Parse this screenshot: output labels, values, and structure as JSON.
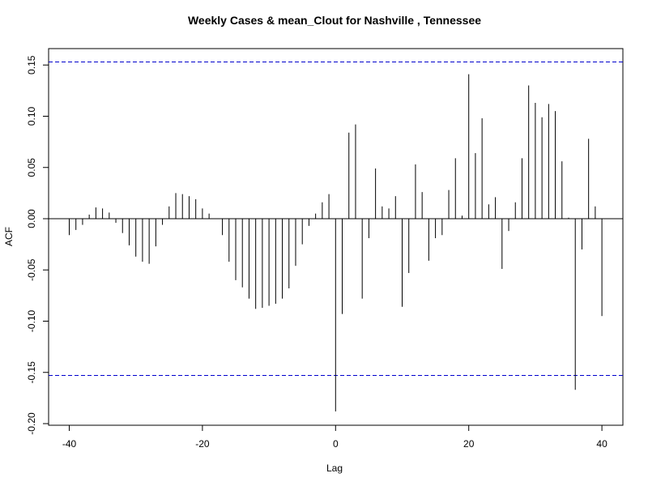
{
  "chart_data": {
    "type": "bar",
    "title": "Weekly Cases & mean_Clout for Nashville , Tennessee",
    "xlabel": "Lag",
    "ylabel": "ACF",
    "xlim": [
      -42,
      43
    ],
    "ylim": [
      -0.2,
      0.16
    ],
    "x_ticks": [
      -40,
      -20,
      0,
      20,
      40
    ],
    "x_tick_labels": [
      "-40",
      "-20",
      "0",
      "20",
      "40"
    ],
    "y_ticks": [
      -0.2,
      -0.15,
      -0.1,
      -0.05,
      0.0,
      0.05,
      0.1,
      0.15
    ],
    "y_tick_labels": [
      "-0.20",
      "-0.15",
      "-0.10",
      "-0.05",
      "0.00",
      "0.05",
      "0.10",
      "0.15"
    ],
    "confidence_bound": 0.153,
    "confidence_color": "#0000CD",
    "bar_color": "#000000",
    "lags": [
      -40,
      -39,
      -38,
      -37,
      -36,
      -35,
      -34,
      -33,
      -32,
      -31,
      -30,
      -29,
      -28,
      -27,
      -26,
      -25,
      -24,
      -23,
      -22,
      -21,
      -20,
      -19,
      -18,
      -17,
      -16,
      -15,
      -14,
      -13,
      -12,
      -11,
      -10,
      -9,
      -8,
      -7,
      -6,
      -5,
      -4,
      -3,
      -2,
      -1,
      0,
      1,
      2,
      3,
      4,
      5,
      6,
      7,
      8,
      9,
      10,
      11,
      12,
      13,
      14,
      15,
      16,
      17,
      18,
      19,
      20,
      21,
      22,
      23,
      24,
      25,
      26,
      27,
      28,
      29,
      30,
      31,
      32,
      33,
      34,
      35,
      36,
      37,
      38,
      39,
      40
    ],
    "values": [
      -0.016,
      -0.011,
      -0.006,
      0.004,
      0.011,
      0.01,
      0.006,
      -0.004,
      -0.014,
      -0.026,
      -0.037,
      -0.042,
      -0.044,
      -0.027,
      -0.006,
      0.012,
      0.025,
      0.024,
      0.022,
      0.019,
      0.01,
      0.005,
      0.0,
      -0.016,
      -0.042,
      -0.06,
      -0.067,
      -0.078,
      -0.088,
      -0.087,
      -0.085,
      -0.083,
      -0.078,
      -0.068,
      -0.046,
      -0.025,
      -0.007,
      0.005,
      0.016,
      0.024,
      -0.188,
      -0.093,
      0.084,
      0.092,
      -0.078,
      -0.019,
      0.049,
      0.012,
      0.01,
      0.022,
      -0.086,
      -0.053,
      0.053,
      0.026,
      -0.041,
      -0.019,
      -0.016,
      0.028,
      0.059,
      0.003,
      0.141,
      0.064,
      0.098,
      0.014,
      0.021,
      -0.049,
      -0.012,
      0.016,
      0.059,
      0.13,
      0.113,
      0.099,
      0.112,
      0.105,
      0.056,
      0.001,
      -0.167,
      -0.03,
      0.078,
      0.012,
      -0.095
    ]
  }
}
